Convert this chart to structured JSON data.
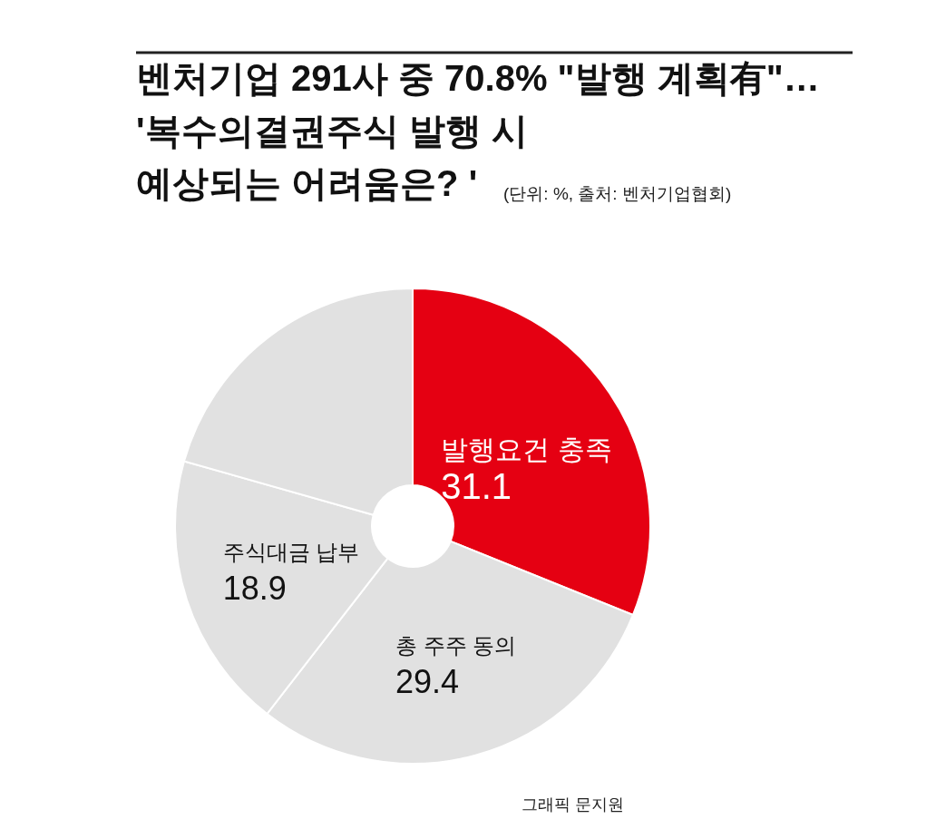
{
  "chart_data": {
    "type": "donut",
    "title": "벤처기업 291사 중 70.8% \"발행 계획有\"…\n'복수의결권주식 발행 시\n예상되는 어려움은? '",
    "subtitle": "(단위: %, 출처: 벤처기업협회)",
    "categories": [
      "발행요건 충족",
      "총 주주 동의",
      "주식대금 납부",
      null
    ],
    "values": [
      31.1,
      29.4,
      18.9,
      20.6
    ],
    "colors": [
      "#e50012",
      "#e1e1e1",
      "#e1e1e1",
      "#e1e1e1"
    ],
    "value_labels": [
      "31.1",
      "29.4",
      "18.9",
      null
    ],
    "annotations": [
      "그래픽 문지원"
    ]
  }
}
